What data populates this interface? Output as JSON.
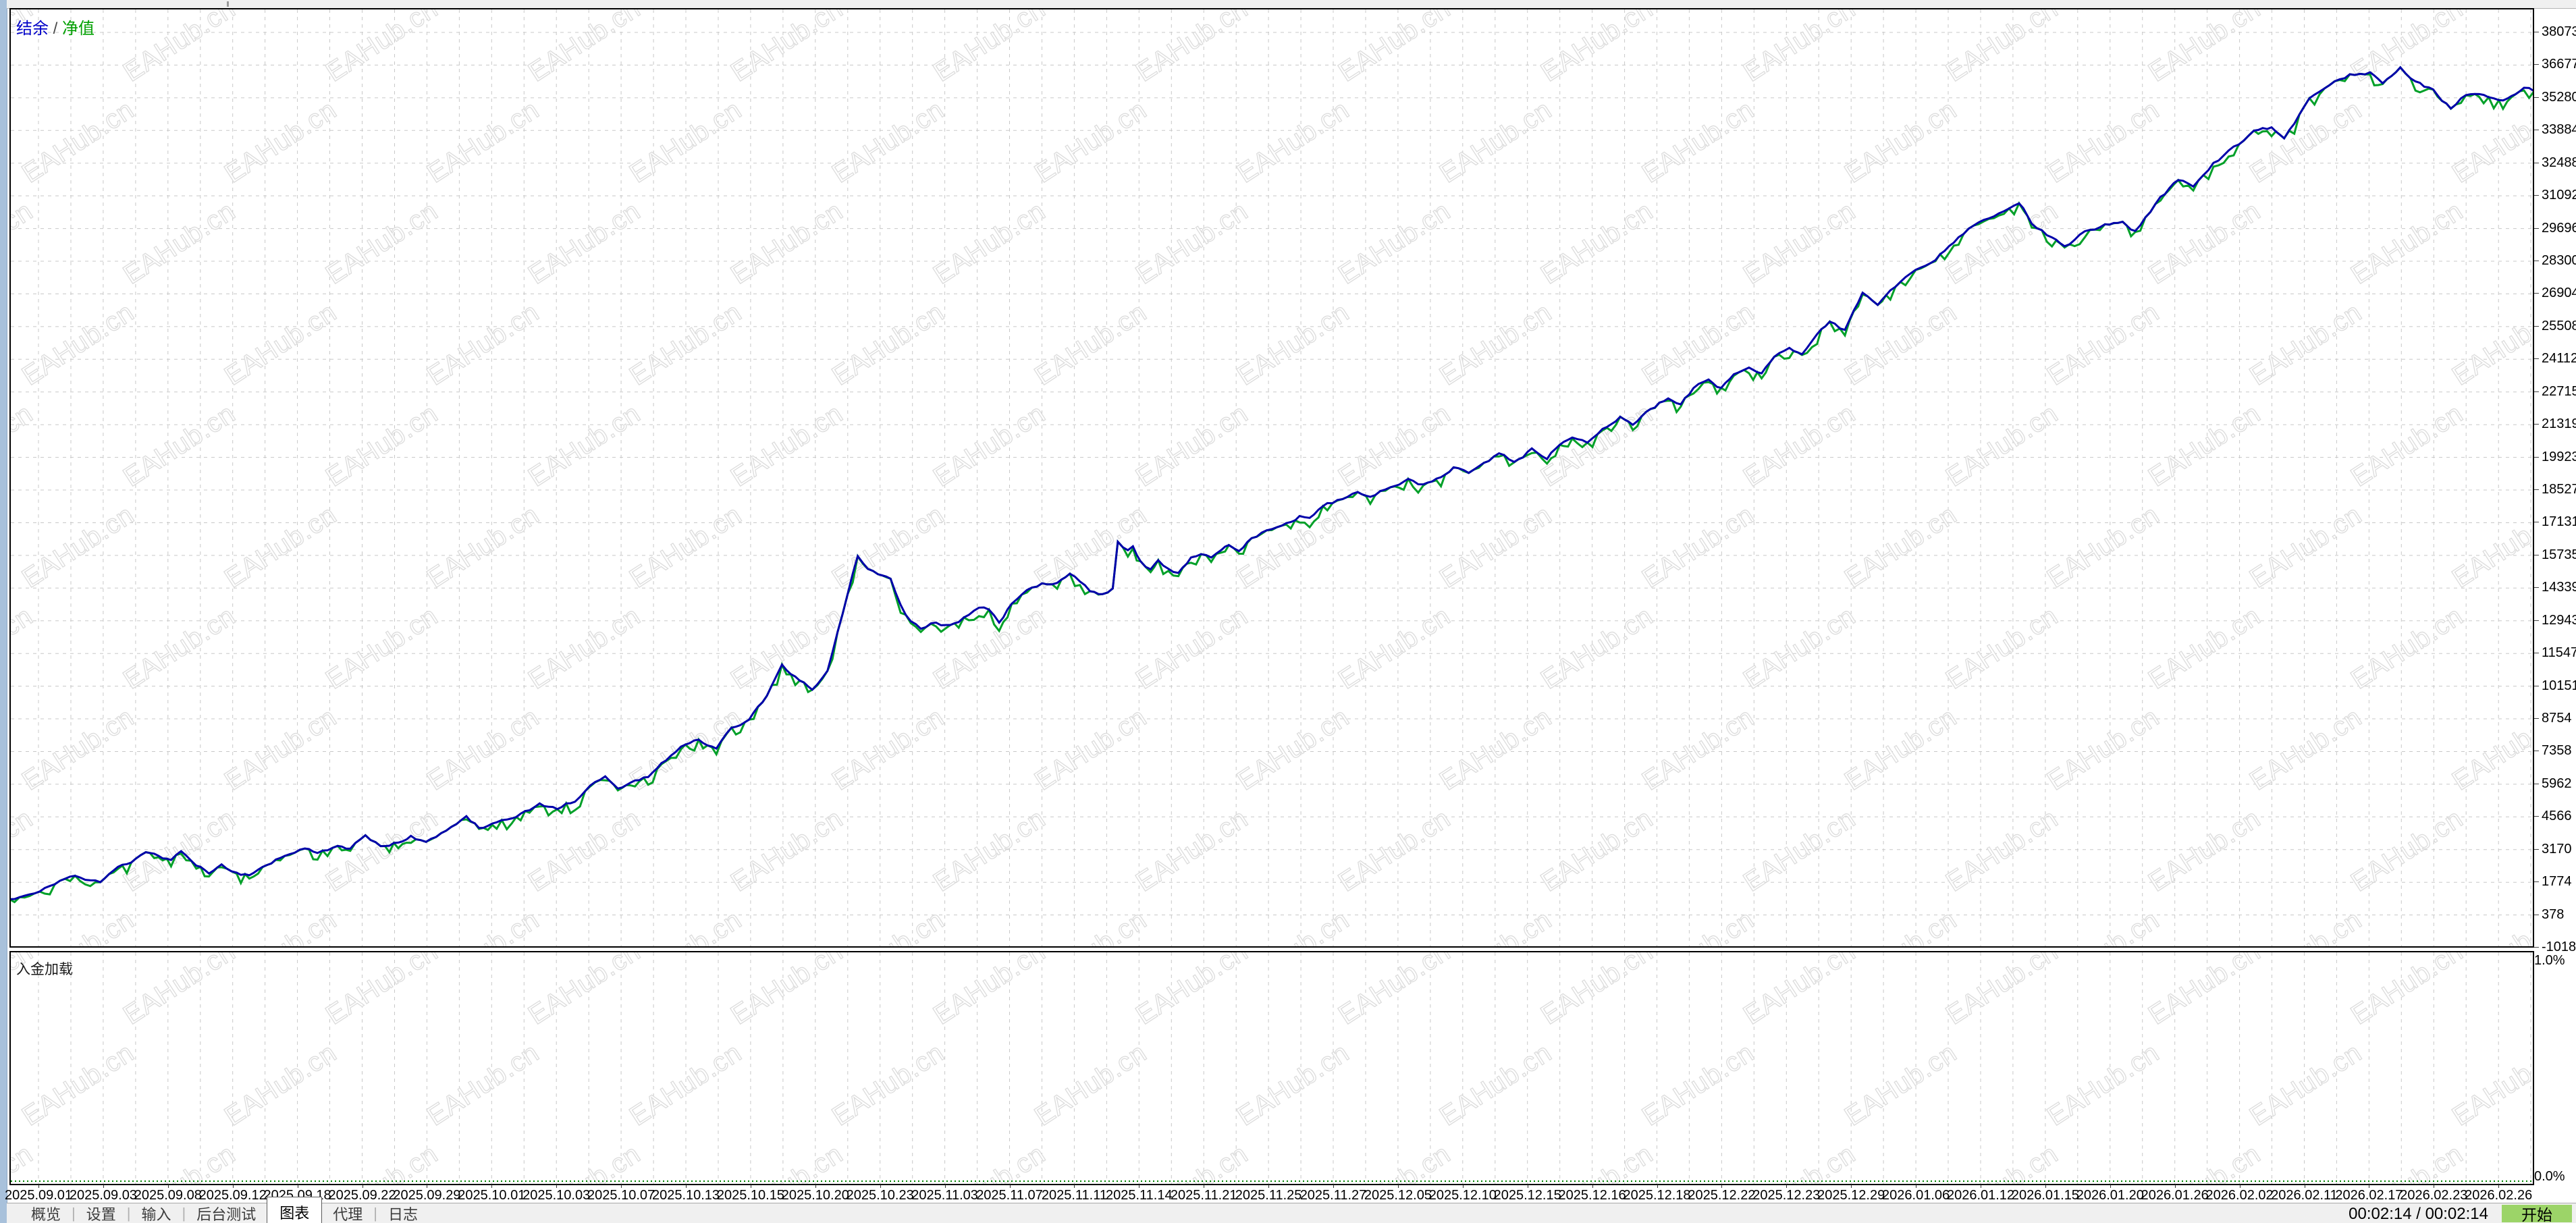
{
  "window": {
    "legend": {
      "balance": "结余",
      "separator": " / ",
      "equity": "净值"
    },
    "watermark": "EAHub.cn",
    "load_panel": {
      "label": "入金加载",
      "top_label": "1.0%",
      "bottom_label": "0.0%"
    },
    "status_bar": {
      "tabs": [
        {
          "label": "概览",
          "active": false
        },
        {
          "label": "设置",
          "active": false
        },
        {
          "label": "输入",
          "active": false
        },
        {
          "label": "后台测试",
          "active": false
        },
        {
          "label": "图表",
          "active": true
        },
        {
          "label": "代理",
          "active": false
        },
        {
          "label": "日志",
          "active": false
        }
      ],
      "time_text": "00:02:14 / 00:02:14",
      "start_button": "开始"
    },
    "colors": {
      "balance_line": "#0000aa",
      "equity_line": "#00a028",
      "grid": "#c8c8c8",
      "watermark_stroke": "#dcdcdc",
      "start_button_bg": "#9cd468",
      "left_strip": "#a8c1db",
      "deposit_load_line": "#008000"
    }
  },
  "chart_data": {
    "type": "line",
    "title": "结余 / 净值",
    "x_axis": {
      "labels": [
        "2025.09.01",
        "2025.09.03",
        "2025.09.08",
        "2025.09.12",
        "2025.09.18",
        "2025.09.22",
        "2025.09.29",
        "2025.10.01",
        "2025.10.03",
        "2025.10.07",
        "2025.10.13",
        "2025.10.15",
        "2025.10.20",
        "2025.10.23",
        "2025.11.03",
        "2025.11.07",
        "2025.11.11",
        "2025.11.14",
        "2025.11.21",
        "2025.11.25",
        "2025.11.27",
        "2025.12.05",
        "2025.12.10",
        "2025.12.15",
        "2025.12.16",
        "2025.12.18",
        "2025.12.22",
        "2025.12.23",
        "2025.12.29",
        "2026.01.06",
        "2026.01.12",
        "2026.01.15",
        "2026.01.20",
        "2026.01.26",
        "2026.02.02",
        "2026.02.11",
        "2026.02.17",
        "2026.02.23",
        "2026.02.26"
      ]
    },
    "y_axis": {
      "labels": [
        38073,
        36677,
        35280,
        33884,
        32488,
        31092,
        29696,
        28300,
        26904,
        25508,
        24112,
        22715,
        21319,
        19923,
        18527,
        17131,
        15735,
        14339,
        12943,
        11547,
        10151,
        8754,
        7358,
        5962,
        4566,
        3170,
        1774,
        378,
        -1018
      ],
      "max": 38073,
      "min": -1018,
      "grid": "dashed"
    },
    "series": [
      {
        "name": "结余 (balance)",
        "color": "#0000aa",
        "points": [
          [
            0,
            1000
          ],
          [
            0.012,
            1400
          ],
          [
            0.02,
            1800
          ],
          [
            0.026,
            2050
          ],
          [
            0.03,
            1780
          ],
          [
            0.036,
            1620
          ],
          [
            0.043,
            2250
          ],
          [
            0.05,
            2700
          ],
          [
            0.054,
            2920
          ],
          [
            0.059,
            2760
          ],
          [
            0.064,
            2560
          ],
          [
            0.068,
            2960
          ],
          [
            0.074,
            2520
          ],
          [
            0.079,
            2260
          ],
          [
            0.084,
            2570
          ],
          [
            0.09,
            2210
          ],
          [
            0.095,
            2060
          ],
          [
            0.102,
            2520
          ],
          [
            0.109,
            2920
          ],
          [
            0.117,
            3320
          ],
          [
            0.122,
            3060
          ],
          [
            0.13,
            3360
          ],
          [
            0.135,
            3160
          ],
          [
            0.141,
            3820
          ],
          [
            0.147,
            3360
          ],
          [
            0.154,
            3560
          ],
          [
            0.159,
            3760
          ],
          [
            0.165,
            3520
          ],
          [
            0.173,
            4120
          ],
          [
            0.181,
            4620
          ],
          [
            0.186,
            4170
          ],
          [
            0.193,
            4370
          ],
          [
            0.199,
            4570
          ],
          [
            0.206,
            4960
          ],
          [
            0.21,
            5260
          ],
          [
            0.217,
            4960
          ],
          [
            0.224,
            5260
          ],
          [
            0.23,
            5810
          ],
          [
            0.236,
            6360
          ],
          [
            0.241,
            5660
          ],
          [
            0.246,
            5910
          ],
          [
            0.253,
            6160
          ],
          [
            0.26,
            6910
          ],
          [
            0.266,
            7460
          ],
          [
            0.273,
            7810
          ],
          [
            0.28,
            7360
          ],
          [
            0.286,
            8210
          ],
          [
            0.293,
            8710
          ],
          [
            0.3,
            9710
          ],
          [
            0.306,
            11010
          ],
          [
            0.313,
            10410
          ],
          [
            0.318,
            10010
          ],
          [
            0.324,
            10810
          ],
          [
            0.33,
            13210
          ],
          [
            0.336,
            15710
          ],
          [
            0.34,
            15110
          ],
          [
            0.344,
            14910
          ],
          [
            0.349,
            14810
          ],
          [
            0.353,
            13610
          ],
          [
            0.357,
            12910
          ],
          [
            0.361,
            12610
          ],
          [
            0.365,
            12860
          ],
          [
            0.371,
            12710
          ],
          [
            0.376,
            12960
          ],
          [
            0.384,
            13560
          ],
          [
            0.388,
            13410
          ],
          [
            0.392,
            12910
          ],
          [
            0.397,
            13710
          ],
          [
            0.403,
            14110
          ],
          [
            0.409,
            14460
          ],
          [
            0.415,
            14510
          ],
          [
            0.42,
            15010
          ],
          [
            0.424,
            14710
          ],
          [
            0.428,
            14310
          ],
          [
            0.433,
            14210
          ],
          [
            0.437,
            14360
          ],
          [
            0.439,
            16360
          ],
          [
            0.443,
            16010
          ],
          [
            0.445,
            16210
          ],
          [
            0.448,
            15610
          ],
          [
            0.452,
            15210
          ],
          [
            0.455,
            15510
          ],
          [
            0.459,
            15110
          ],
          [
            0.463,
            14910
          ],
          [
            0.468,
            15560
          ],
          [
            0.472,
            15810
          ],
          [
            0.476,
            15610
          ],
          [
            0.48,
            15910
          ],
          [
            0.483,
            16190
          ],
          [
            0.487,
            15960
          ],
          [
            0.492,
            16590
          ],
          [
            0.498,
            16880
          ],
          [
            0.504,
            17210
          ],
          [
            0.511,
            17510
          ],
          [
            0.515,
            17310
          ],
          [
            0.522,
            17860
          ],
          [
            0.528,
            18110
          ],
          [
            0.534,
            18310
          ],
          [
            0.539,
            18110
          ],
          [
            0.547,
            18710
          ],
          [
            0.554,
            18910
          ],
          [
            0.56,
            18710
          ],
          [
            0.567,
            19210
          ],
          [
            0.572,
            19560
          ],
          [
            0.578,
            19260
          ],
          [
            0.584,
            19760
          ],
          [
            0.59,
            20060
          ],
          [
            0.596,
            19660
          ],
          [
            0.603,
            20260
          ],
          [
            0.609,
            19960
          ],
          [
            0.614,
            20560
          ],
          [
            0.619,
            20960
          ],
          [
            0.625,
            20660
          ],
          [
            0.631,
            21260
          ],
          [
            0.638,
            21660
          ],
          [
            0.643,
            21360
          ],
          [
            0.65,
            21960
          ],
          [
            0.657,
            22460
          ],
          [
            0.662,
            22160
          ],
          [
            0.667,
            22860
          ],
          [
            0.673,
            23260
          ],
          [
            0.678,
            22960
          ],
          [
            0.683,
            23560
          ],
          [
            0.689,
            23960
          ],
          [
            0.694,
            23660
          ],
          [
            0.699,
            24260
          ],
          [
            0.705,
            24660
          ],
          [
            0.71,
            24360
          ],
          [
            0.716,
            25060
          ],
          [
            0.721,
            25560
          ],
          [
            0.727,
            25260
          ],
          [
            0.734,
            26760
          ],
          [
            0.74,
            26460
          ],
          [
            0.745,
            27060
          ],
          [
            0.753,
            27760
          ],
          [
            0.761,
            28360
          ],
          [
            0.772,
            29360
          ],
          [
            0.78,
            29960
          ],
          [
            0.788,
            30360
          ],
          [
            0.796,
            30760
          ],
          [
            0.801,
            29960
          ],
          [
            0.809,
            29360
          ],
          [
            0.814,
            29060
          ],
          [
            0.822,
            29560
          ],
          [
            0.83,
            29860
          ],
          [
            0.837,
            29960
          ],
          [
            0.842,
            29660
          ],
          [
            0.852,
            31060
          ],
          [
            0.859,
            31760
          ],
          [
            0.865,
            31560
          ],
          [
            0.873,
            32560
          ],
          [
            0.881,
            33160
          ],
          [
            0.889,
            33760
          ],
          [
            0.896,
            33860
          ],
          [
            0.901,
            33360
          ],
          [
            0.911,
            35060
          ],
          [
            0.919,
            35660
          ],
          [
            0.927,
            36160
          ],
          [
            0.935,
            36360
          ],
          [
            0.94,
            35860
          ],
          [
            0.947,
            36460
          ],
          [
            0.953,
            35960
          ],
          [
            0.96,
            35560
          ],
          [
            0.967,
            34860
          ],
          [
            0.973,
            35460
          ],
          [
            0.98,
            35260
          ],
          [
            0.986,
            35160
          ],
          [
            0.991,
            35360
          ],
          [
            0.996,
            35660
          ],
          [
            1,
            35560
          ]
        ]
      },
      {
        "name": "净值 (equity)",
        "color": "#00a028",
        "note": "tracks the balance line with small drawdown spikes dipping below it"
      }
    ],
    "sub_chart": {
      "label": "入金加载",
      "y_labels": [
        "1.0%",
        "0.0%"
      ],
      "series": [
        {
          "name": "deposit load",
          "color": "#008000",
          "shape": "flat dotted line at ≈0%"
        }
      ]
    }
  }
}
